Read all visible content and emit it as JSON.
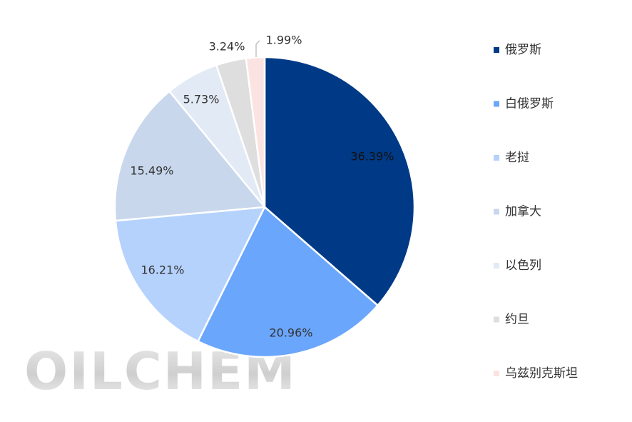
{
  "chart_data": {
    "type": "pie",
    "title": "",
    "legend_position": "right",
    "series": [
      {
        "name": "俄罗斯",
        "value": 36.39,
        "label": "36.39%",
        "color": "#003a86"
      },
      {
        "name": "白俄罗斯",
        "value": 20.96,
        "label": "20.96%",
        "color": "#6aa6fb"
      },
      {
        "name": "老挝",
        "value": 16.21,
        "label": "16.21%",
        "color": "#b5d2fd"
      },
      {
        "name": "加拿大",
        "value": 15.49,
        "label": "15.49%",
        "color": "#c8d7ec"
      },
      {
        "name": "以色列",
        "value": 5.73,
        "label": "5.73%",
        "color": "#e2eaf5"
      },
      {
        "name": "约旦",
        "value": 3.24,
        "label": "3.24%",
        "color": "#dedede"
      },
      {
        "name": "乌兹别克斯坦",
        "value": 1.99,
        "label": "1.99%",
        "color": "#fbe3e1"
      }
    ]
  },
  "watermark": {
    "text": "OILCHEM"
  }
}
